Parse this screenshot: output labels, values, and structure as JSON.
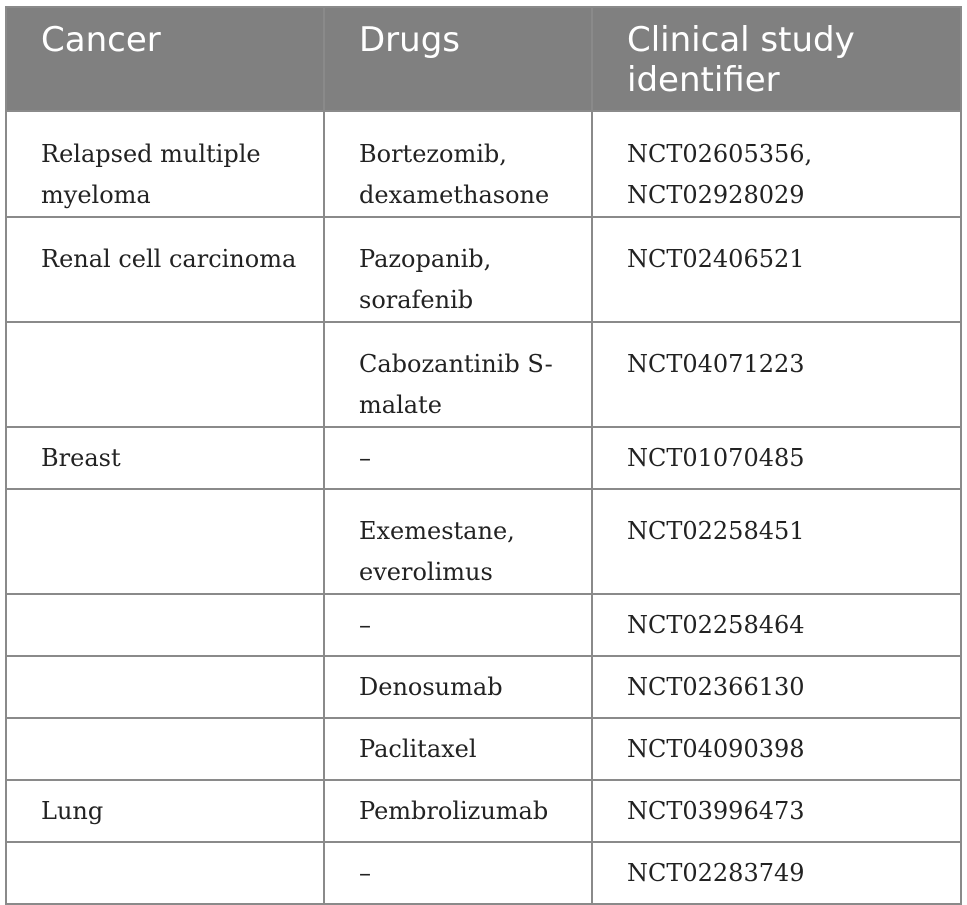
{
  "table": {
    "headers": [
      "Cancer",
      "Drugs",
      "Clinical study\nidentifier"
    ],
    "header_lines": {
      "h3_line1": "Clinical study",
      "h3_line2": "identifier"
    },
    "rows": [
      {
        "cancer": "Relapsed multiple myeloma",
        "drugs": "Bortezomib, dexamethasone",
        "identifier": "NCT02605356, NCT02928029"
      },
      {
        "cancer": "Renal cell carcinoma",
        "drugs": "Pazopanib, sorafenib",
        "identifier": "NCT02406521"
      },
      {
        "cancer": "",
        "drugs": "Cabozantinib S-malate",
        "identifier": "NCT04071223"
      },
      {
        "cancer": "Breast",
        "drugs": "–",
        "identifier": "NCT01070485"
      },
      {
        "cancer": "",
        "drugs": "Exemestane, everolimus",
        "identifier": "NCT02258451"
      },
      {
        "cancer": "",
        "drugs": "–",
        "identifier": "NCT02258464"
      },
      {
        "cancer": "",
        "drugs": "Denosumab",
        "identifier": "NCT02366130"
      },
      {
        "cancer": "",
        "drugs": "Paclitaxel",
        "identifier": "NCT04090398"
      },
      {
        "cancer": "Lung",
        "drugs": "Pembrolizumab",
        "identifier": "NCT03996473"
      },
      {
        "cancer": "",
        "drugs": "–",
        "identifier": "NCT02283749"
      }
    ]
  },
  "colors": {
    "header_bg": "#808080",
    "header_text": "#ffffff",
    "border": "#8a8a8a",
    "body_text": "#222222"
  }
}
